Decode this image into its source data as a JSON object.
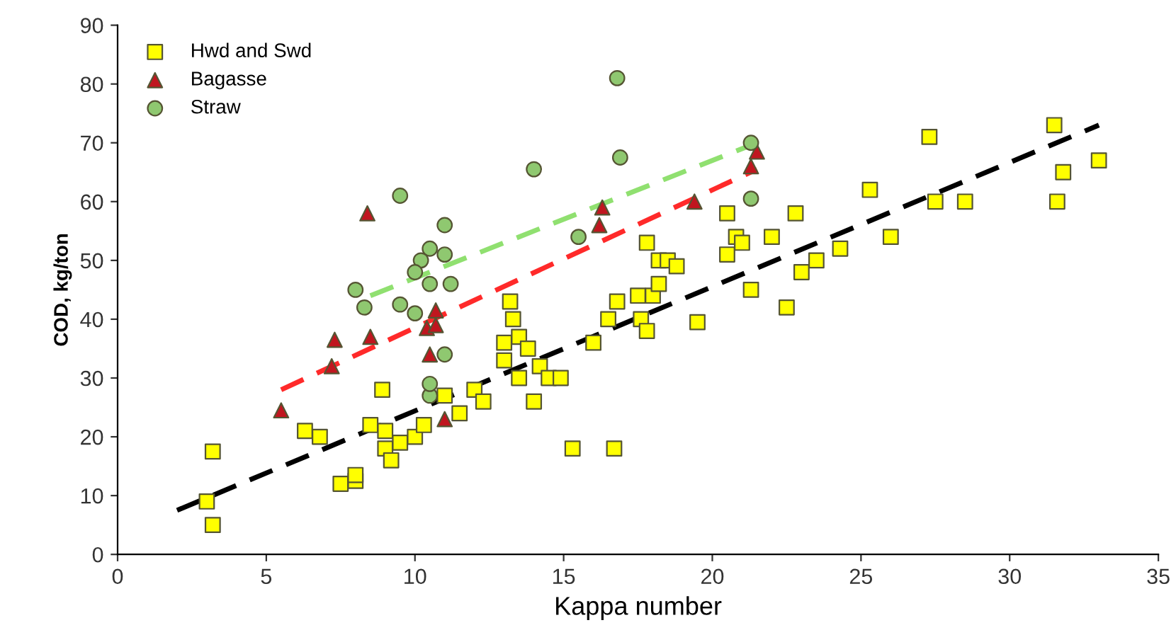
{
  "chart_data": {
    "type": "scatter",
    "xlabel": "Kappa number",
    "ylabel": "COD, kg/ton",
    "xlim": [
      0,
      35
    ],
    "ylim": [
      0,
      90
    ],
    "xticks": [
      0,
      5,
      10,
      15,
      20,
      25,
      30,
      35
    ],
    "yticks": [
      0,
      10,
      20,
      30,
      40,
      50,
      60,
      70,
      80,
      90
    ],
    "grid": false,
    "legend": "top left",
    "series": [
      {
        "name": "Hwd and Swd",
        "marker": "square",
        "color": "#ffff00",
        "x": [
          3,
          3.2,
          3.2,
          6.3,
          6.8,
          7.5,
          8,
          8,
          8.5,
          8.9,
          9,
          9,
          9.2,
          9.5,
          10,
          10.3,
          11,
          11.5,
          12,
          12.3,
          13,
          13,
          13.2,
          13.3,
          13.5,
          13.5,
          13.8,
          14,
          14.2,
          14.5,
          14.9,
          15.3,
          16,
          16.5,
          16.7,
          16.8,
          17.5,
          17.6,
          17.8,
          17.8,
          18,
          18.2,
          18.2,
          18.5,
          18.8,
          19.5,
          20.5,
          20.5,
          20.8,
          21,
          21.3,
          22,
          22.5,
          22.8,
          23,
          23.5,
          24.3,
          25.3,
          26,
          27.3,
          27.5,
          28.5,
          31.5,
          31.6,
          31.8,
          33
        ],
        "values": [
          9,
          5,
          17.5,
          21,
          20,
          12,
          12.5,
          13.5,
          22,
          28,
          21,
          18,
          16,
          19,
          20,
          22,
          27,
          24,
          28,
          26,
          36,
          33,
          43,
          40,
          30,
          37,
          35,
          26,
          32,
          30,
          30,
          18,
          36,
          40,
          18,
          43,
          44,
          40,
          38,
          53,
          44,
          46,
          50,
          50,
          49,
          39.5,
          51,
          58,
          54,
          53,
          45,
          54,
          42,
          58,
          48,
          50,
          52,
          62,
          54,
          71,
          60,
          60,
          73,
          60,
          65,
          67
        ]
      },
      {
        "name": "Bagasse",
        "marker": "triangle",
        "color": "#c0161f",
        "x": [
          5.5,
          7.2,
          7.3,
          8.5,
          8.4,
          10.7,
          10.4,
          10.5,
          10.7,
          11,
          16.2,
          16.3,
          19.4,
          21.3,
          21.5
        ],
        "values": [
          24.5,
          32,
          36.5,
          37,
          58,
          41.5,
          38.5,
          34,
          39,
          23,
          56,
          59,
          60,
          66,
          68.5
        ]
      },
      {
        "name": "Straw",
        "marker": "circle",
        "color": "#8fc870",
        "x": [
          8,
          8.3,
          9.5,
          9.5,
          10,
          10.5,
          10.5,
          10.2,
          10,
          10.5,
          11,
          11,
          11,
          10.5,
          11.2,
          14,
          15.5,
          16.8,
          16.9,
          21.3,
          21.3
        ],
        "values": [
          45,
          42,
          61,
          42.5,
          41,
          46,
          52,
          50,
          48,
          27,
          56,
          34,
          51,
          29,
          46,
          65.5,
          54,
          81,
          67.5,
          60.5,
          70
        ]
      },
      {
        "type": "line",
        "line_style": "dashed",
        "color": "#000000",
        "x": [
          2,
          33
        ],
        "values": [
          7.5,
          73
        ]
      },
      {
        "type": "line",
        "line_style": "dashed",
        "color": "#ff2a2a",
        "x": [
          5.5,
          21.5
        ],
        "values": [
          28,
          65.5
        ]
      },
      {
        "type": "line",
        "line_style": "dashed",
        "color": "#90e070",
        "x": [
          8.5,
          21.5
        ],
        "values": [
          44,
          70
        ]
      }
    ]
  }
}
